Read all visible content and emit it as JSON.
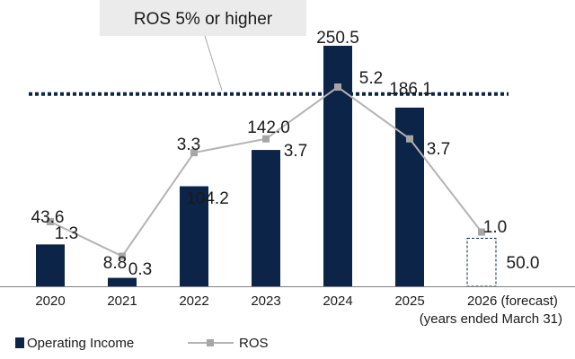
{
  "chart_data": {
    "type": "bar",
    "categories": [
      "2020",
      "2021",
      "2022",
      "2023",
      "2024",
      "2025",
      "2026 (forecast)"
    ],
    "x_note": "(years ended March 31)",
    "series": [
      {
        "name": "Operating Income",
        "type": "bar",
        "values": [
          43.6,
          8.8,
          104.2,
          142.0,
          250.5,
          186.1,
          50.0
        ],
        "labels": [
          "43.6",
          "8.8",
          "104.2",
          "142.0",
          "250.5",
          "186.1",
          "50.0"
        ],
        "forecast_index": 6
      },
      {
        "name": "ROS",
        "type": "line",
        "values": [
          1.3,
          0.3,
          3.3,
          3.7,
          5.2,
          3.7,
          1.0
        ],
        "labels": [
          "1.3",
          "0.3",
          "3.3",
          "3.7",
          "5.2",
          "3.7",
          "1.0"
        ]
      }
    ],
    "reference_line": {
      "ros_value": 5.0,
      "label": "ROS 5% or higher",
      "style": "dotted"
    },
    "ylim_operating_income": [
      0,
      250.5
    ],
    "ylim_ros": [
      0,
      5.2
    ],
    "grid": false,
    "legend_position": "bottom-left",
    "colors": {
      "bar": "#0c2447",
      "line": "#b3b3b3",
      "marker": "#a6a6a6",
      "reference": "#0c2447",
      "callout_bg": "#ebebeb",
      "axis": "#7f7f7f"
    }
  }
}
